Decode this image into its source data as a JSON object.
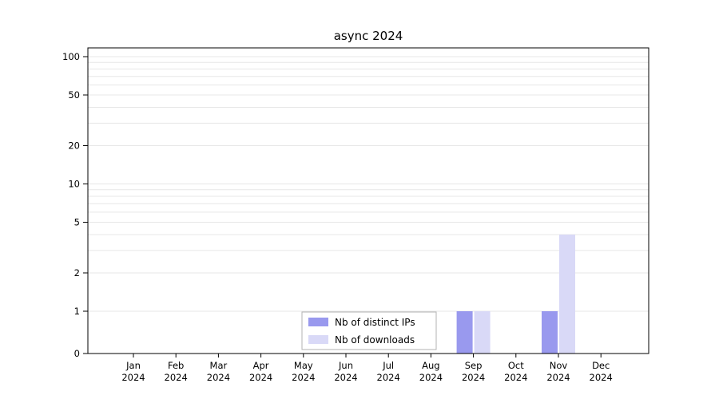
{
  "chart_data": {
    "type": "bar",
    "title": "async 2024",
    "categories": [
      "Jan 2024",
      "Feb 2024",
      "Mar 2024",
      "Apr 2024",
      "May 2024",
      "Jun 2024",
      "Jul 2024",
      "Aug 2024",
      "Sep 2024",
      "Oct 2024",
      "Nov 2024",
      "Dec 2024"
    ],
    "series": [
      {
        "name": "Nb of distinct IPs",
        "color": "#9999ee",
        "values": [
          0,
          0,
          0,
          0,
          0,
          0,
          0,
          0,
          1,
          0,
          1,
          0
        ]
      },
      {
        "name": "Nb of downloads",
        "color": "#d9d9f7",
        "values": [
          0,
          0,
          0,
          0,
          0,
          0,
          0,
          0,
          1,
          0,
          4,
          0
        ]
      }
    ],
    "xlabel": "",
    "ylabel": "",
    "yscale": "symlog",
    "yticks": [
      0,
      1,
      2,
      5,
      10,
      20,
      50,
      100
    ],
    "ylim": [
      0,
      115
    ],
    "grid": "horizontal-log-minor",
    "legend_position": "lower-center-inside",
    "legend_labels": [
      "Nb of distinct IPs",
      "Nb of downloads"
    ],
    "axis_color": "#000000",
    "grid_color": "#e7e7e7",
    "legend_border_color": "#b3b3b3"
  }
}
